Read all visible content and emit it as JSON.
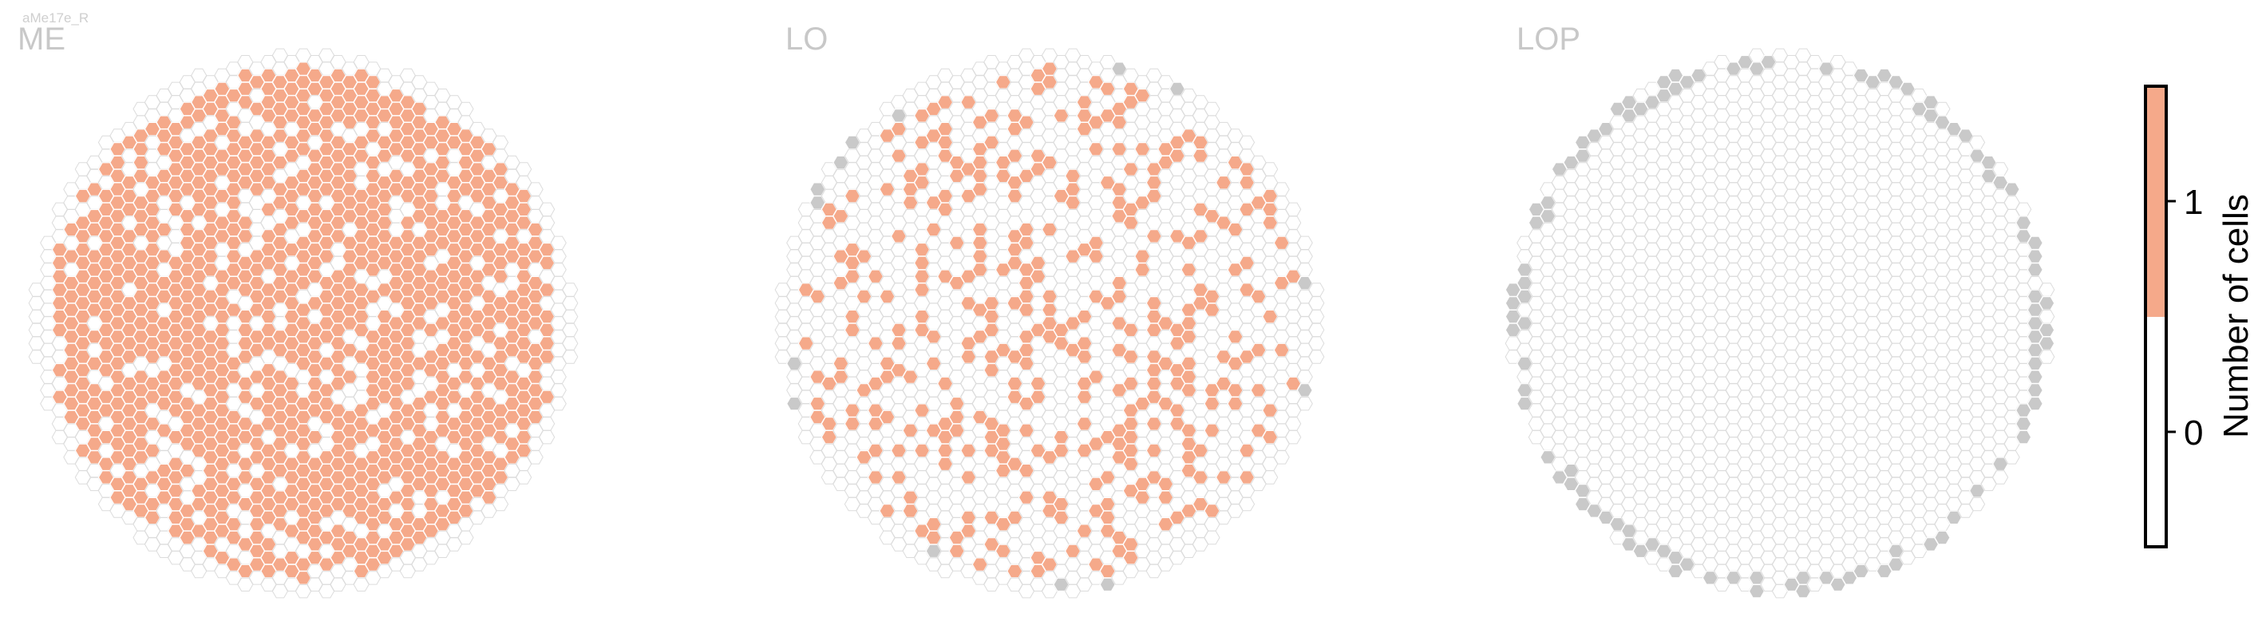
{
  "cell_type": "aMe17e_R",
  "colors": {
    "filled": "#F5A98A",
    "empty_stroke": "#DCDCDC",
    "boundary": "#C9C9C9",
    "title": "#C8C8C8",
    "cell_type_text": "#CFCFCF"
  },
  "colorbar": {
    "label": "Number of cells",
    "tick_labels": [
      "0",
      "1"
    ],
    "range": [
      -0.5,
      1.5
    ],
    "colors": [
      {
        "from": -0.5,
        "to": 0.5,
        "color": "#FFFFFF"
      },
      {
        "from": 0.5,
        "to": 1.5,
        "color": "#F5A98A"
      }
    ]
  },
  "chart_data": {
    "type": "heatmap",
    "encoding": "hexagonal columnar grid; 1 = column contains a cell of the type, 0 = no cell",
    "panels": [
      {
        "title": "ME",
        "filled_fraction": 0.8,
        "boundary_fraction": 0.0,
        "seed": 11
      },
      {
        "title": "LO",
        "filled_fraction": 0.28,
        "boundary_fraction": 0.05,
        "seed": 29
      },
      {
        "title": "LOP",
        "filled_fraction": 0.0,
        "boundary_fraction": 0.3,
        "seed": 47
      }
    ]
  }
}
